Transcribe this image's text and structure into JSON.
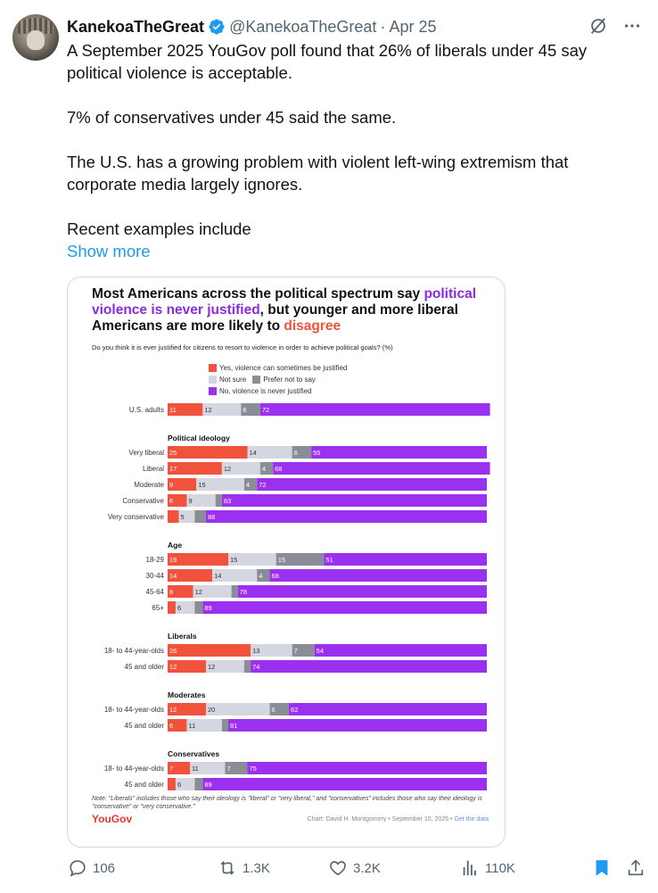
{
  "author": {
    "name": "KanekoaTheGreat",
    "handle": "@KanekoaTheGreat",
    "separator": "·",
    "date": "Apr 25"
  },
  "tweet": {
    "p1": "A September 2025 YouGov poll found that 26% of liberals under 45 say political violence is acceptable.",
    "p2": "7% of conservatives under 45 said the same.",
    "p3": "The U.S. has a growing problem with violent left-wing extremism that corporate media largely ignores.",
    "p4": "Recent examples include",
    "show_more": "Show more"
  },
  "stats": {
    "replies": "106",
    "reposts": "1.3K",
    "likes": "3.2K",
    "views": "110K"
  },
  "chart_data": {
    "type": "bar",
    "stacked": true,
    "orientation": "horizontal",
    "title_part1": "Most Americans across the political spectrum say",
    "title_purple": "political violence is never justified",
    "title_part2": ", but younger and more liberal Americans are more likely to",
    "title_red": "disagree",
    "subtitle": "Do you think it is ever justified for citizens to resort to violence in order to achieve political goals? (%)",
    "legend": [
      {
        "name": "Yes, violence can sometimes be justified",
        "color": "#f0523b"
      },
      {
        "name": "Not sure",
        "color": "#d4d6e0"
      },
      {
        "name": "Prefer not to say",
        "color": "#8a8d96"
      },
      {
        "name": "No, violence is never justified",
        "color": "#9b30f0"
      }
    ],
    "groups": [
      {
        "label": "",
        "rows": [
          {
            "label": "U.S. adults",
            "values": [
              11,
              12,
              6,
              72
            ]
          }
        ]
      },
      {
        "label": "Political ideology",
        "rows": [
          {
            "label": "Very liberal",
            "values": [
              25,
              14,
              6,
              55
            ]
          },
          {
            "label": "Liberal",
            "values": [
              17,
              12,
              4,
              68
            ]
          },
          {
            "label": "Moderate",
            "values": [
              9,
              15,
              4,
              72
            ]
          },
          {
            "label": "Conservative",
            "values": [
              6,
              9,
              null,
              83
            ]
          },
          {
            "label": "Very conservative",
            "values": [
              null,
              5,
              null,
              88
            ]
          }
        ]
      },
      {
        "label": "Age",
        "rows": [
          {
            "label": "18-29",
            "values": [
              19,
              15,
              15,
              51
            ]
          },
          {
            "label": "30-44",
            "values": [
              14,
              14,
              4,
              68
            ]
          },
          {
            "label": "45-64",
            "values": [
              8,
              12,
              null,
              78
            ]
          },
          {
            "label": "65+",
            "values": [
              null,
              6,
              null,
              89
            ]
          }
        ]
      },
      {
        "label": "Liberals",
        "rows": [
          {
            "label": "18- to 44-year-olds",
            "values": [
              26,
              13,
              7,
              54
            ]
          },
          {
            "label": "45 and older",
            "values": [
              12,
              12,
              null,
              74
            ]
          }
        ]
      },
      {
        "label": "Moderates",
        "rows": [
          {
            "label": "18- to 44-year-olds",
            "values": [
              12,
              20,
              6,
              62
            ]
          },
          {
            "label": "45 and older",
            "values": [
              6,
              11,
              null,
              81
            ]
          }
        ]
      },
      {
        "label": "Conservatives",
        "rows": [
          {
            "label": "18- to 44-year-olds",
            "values": [
              7,
              11,
              7,
              75
            ]
          },
          {
            "label": "45 and older",
            "values": [
              null,
              6,
              null,
              89
            ]
          }
        ]
      }
    ],
    "note": "Note: \"Liberals\" includes those who say their ideology is \"liberal\" or \"very liberal,\" and \"conservatives\" includes those who say their ideology is \"conservative\" or \"very conservative.\"",
    "brand": "YouGov",
    "credit": "Chart: David H. Montgomery • September 10, 2025 •",
    "credit_link": "Get the data"
  }
}
